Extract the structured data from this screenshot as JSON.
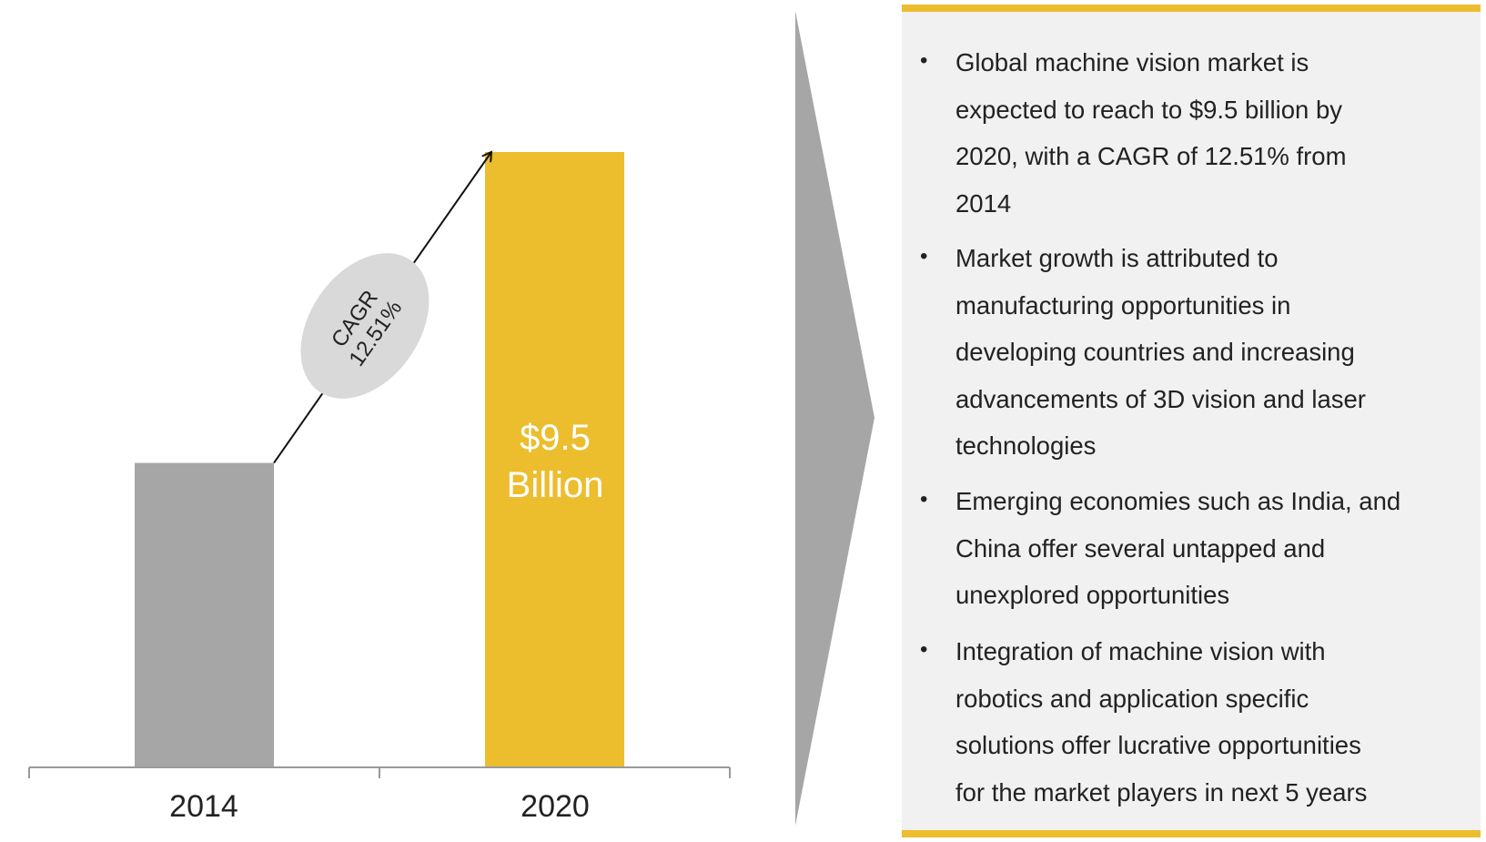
{
  "colors": {
    "accent": "#ecbd2d",
    "bar_2014": "#a6a6a6",
    "chevron": "#a6a6a6",
    "panel_bg": "#f1f1f1",
    "ellipse": "#d9d9d9"
  },
  "chart_data": {
    "type": "bar",
    "categories": [
      "2014",
      "2020"
    ],
    "values": [
      4.7,
      9.5
    ],
    "value_labels": [
      "",
      "$9.5 Billion"
    ],
    "value_label_lines": [
      "$9.5",
      "Billion"
    ],
    "bar_colors": [
      "#a6a6a6",
      "#ecbd2d"
    ],
    "annotation": {
      "lines": [
        "CAGR",
        "12.51%"
      ],
      "type": "arrow from 2014 bar to 2020 bar"
    },
    "title": "",
    "xlabel": "",
    "ylabel": "",
    "ylim": [
      0,
      9.5
    ],
    "grid": false,
    "legend": "none"
  },
  "panel": {
    "bullets": [
      {
        "lines": [
          "Global machine vision market is",
          "expected to reach to $9.5 billion by",
          "2020, with a CAGR of 12.51% from",
          "2014"
        ]
      },
      {
        "lines": [
          "Market growth is attributed to",
          "manufacturing opportunities in",
          "developing countries and increasing",
          "advancements of 3D vision and laser",
          "technologies"
        ]
      },
      {
        "lines": [
          "Emerging economies such as India, and",
          "China offer several untapped and",
          "unexplored opportunities"
        ]
      },
      {
        "lines": [
          "Integration of machine vision with",
          "robotics and application specific",
          "solutions offer lucrative opportunities",
          "for the market players in next 5 years"
        ]
      }
    ],
    "bullet_glyph": "•"
  }
}
